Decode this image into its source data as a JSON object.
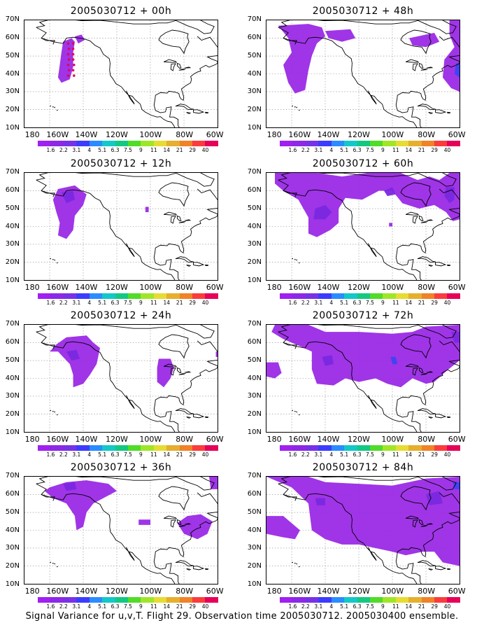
{
  "panels": [
    {
      "title": "2005030712 + 00h"
    },
    {
      "title": "2005030712 + 48h"
    },
    {
      "title": "2005030712 + 12h"
    },
    {
      "title": "2005030712 + 60h"
    },
    {
      "title": "2005030712 + 24h"
    },
    {
      "title": "2005030712 + 72h"
    },
    {
      "title": "2005030712 + 36h"
    },
    {
      "title": "2005030712 + 84h"
    }
  ],
  "lat_ticks": [
    "70N",
    "60N",
    "50N",
    "40N",
    "30N",
    "20N",
    "10N"
  ],
  "lon_ticks": [
    "180",
    "160W",
    "140W",
    "120W",
    "100W",
    "80W",
    "60W"
  ],
  "colorbar": {
    "colors": [
      "#a020f0",
      "#8c28e6",
      "#7832e6",
      "#3c3cff",
      "#2a8cff",
      "#12c8c8",
      "#14c882",
      "#50dc28",
      "#a0e628",
      "#e6dc32",
      "#e6af2d",
      "#f08228",
      "#fa3c3c",
      "#e6005a"
    ],
    "labels": [
      "1.6",
      "2.2",
      "3.1",
      "4",
      "5.1",
      "6.3",
      "7.5",
      "9",
      "11",
      "14",
      "21",
      "29",
      "40"
    ]
  },
  "caption": "Signal Variance for u,v,T. Flight 29. Observation time 2005030712. 2005030400 ensemble.",
  "palette": {
    "shade_low": "#9a2ae6",
    "shade_mid": "#7a28e0",
    "shade_high": "#3c46f0",
    "obs_marker": "#e6005a",
    "coastline": "#000000",
    "grid": "#888888"
  }
}
